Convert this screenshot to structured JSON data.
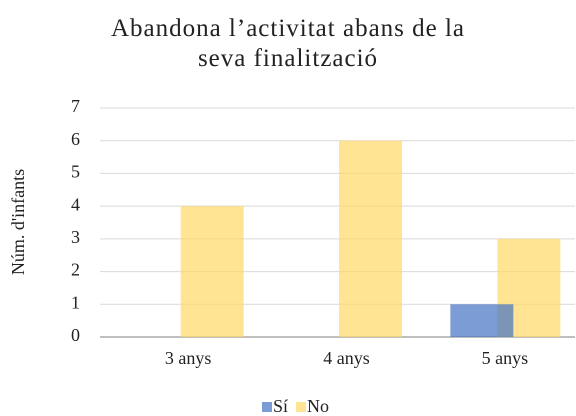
{
  "chart_data": {
    "type": "bar",
    "title": "Abandona l’activitat abans de la seva finalització",
    "ylabel": "Núm. d'infants",
    "categories": [
      "3 anys",
      "4 anys",
      "5 anys"
    ],
    "series": [
      {
        "name": "Sí",
        "color": "#4472c4",
        "values": [
          0,
          0,
          1
        ]
      },
      {
        "name": "No",
        "color": "#ffd966",
        "values": [
          4,
          6,
          3
        ]
      }
    ],
    "ylim": [
      0,
      7
    ],
    "yticks": [
      0,
      1,
      2,
      3,
      4,
      5,
      6,
      7
    ],
    "grid": true,
    "legend": "bottom"
  }
}
